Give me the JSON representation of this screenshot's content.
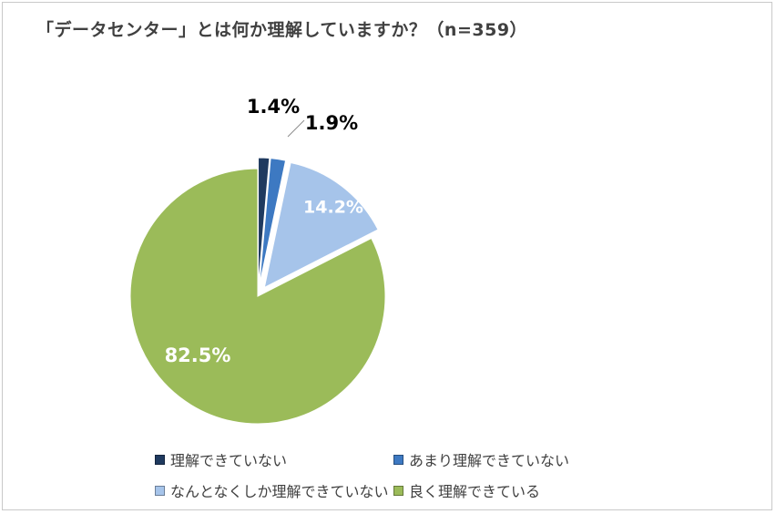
{
  "chart_data": {
    "type": "pie",
    "title": "「データセンター」とは何か理解していますか？（n=359）",
    "categories": [
      "理解できていない",
      "あまり理解できていない",
      "なんとなくしか理解できていない",
      "良く理解できている"
    ],
    "values": [
      1.4,
      1.9,
      14.2,
      82.5
    ],
    "value_labels": [
      "1.4%",
      "1.9%",
      "14.2%",
      "82.5%"
    ],
    "colors": [
      "#1f3a5f",
      "#3d79c2",
      "#a6c4ea",
      "#9bbb59"
    ],
    "exploded": [
      true,
      true,
      true,
      false
    ],
    "legend_position": "bottom"
  }
}
